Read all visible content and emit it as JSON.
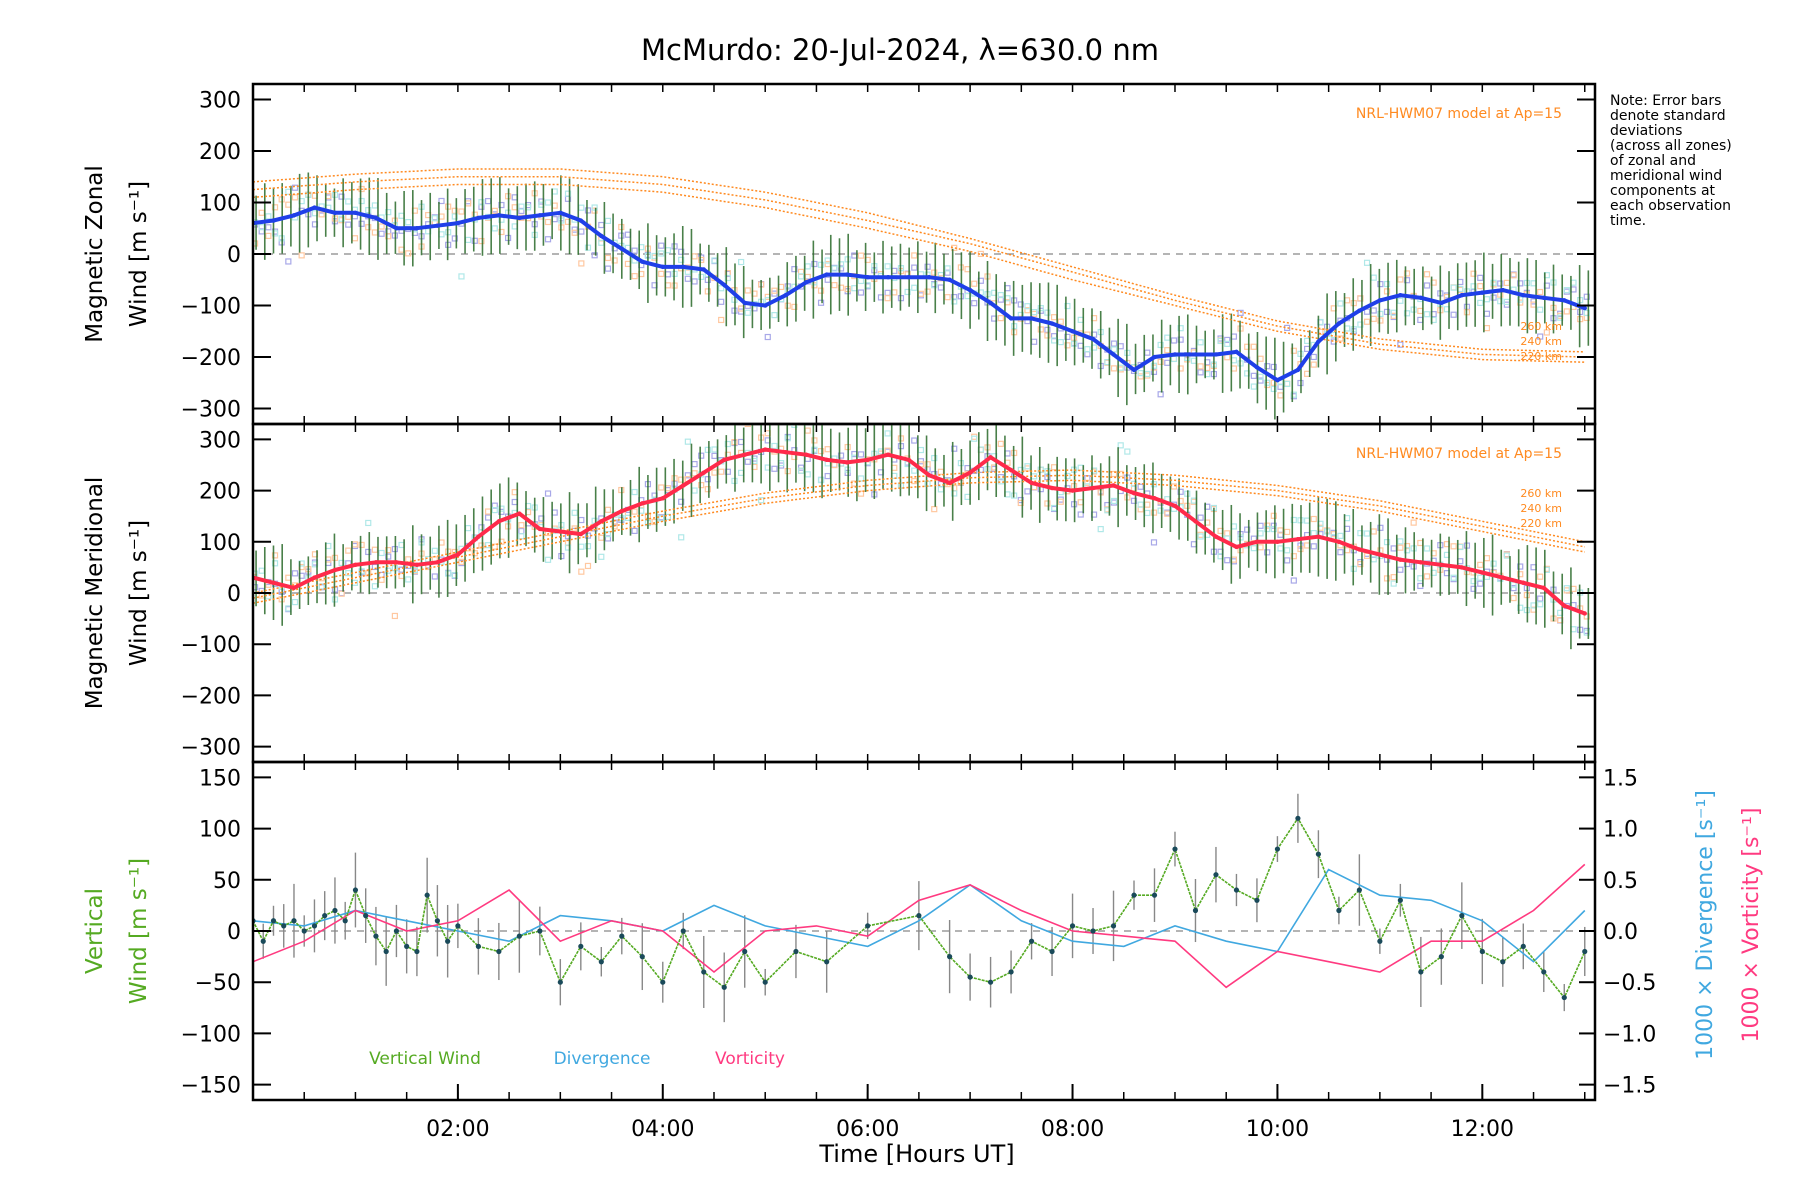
{
  "title": "McMurdo: 20-Jul-2024, λ=630.0 nm",
  "note": "Note: Error bars\ndenote standard\ndeviations\n(across all zones)\nof zonal and\nmeridional wind\ncomponents at\neach observation\ntime.",
  "colors": {
    "zonal": "#1f3fe8",
    "meridional": "#ff2a4a",
    "vertical": "#55aa22",
    "divergence": "#40a8e0",
    "vorticity": "#ff3a80",
    "model": "#ff8a20",
    "scatter": "#a8a8e8",
    "errorbar": "#2a6a2a"
  },
  "chart_data": [
    {
      "type": "line",
      "name": "zonal",
      "ylabel": [
        "Magnetic Zonal",
        "Wind [m s⁻¹]"
      ],
      "ylim": [
        -330,
        330
      ],
      "yticks": [
        -300,
        -200,
        -100,
        0,
        100,
        200,
        300
      ],
      "model_label": "NRL-HWM07 model at Ap=15",
      "model_alts": [
        "260 km",
        "240 km",
        "220 km"
      ],
      "series": [
        {
          "x": [
            0.0,
            0.2,
            0.4,
            0.6,
            0.8,
            1.0,
            1.2,
            1.4,
            1.6,
            1.8,
            2.0,
            2.2,
            2.4,
            2.6,
            2.8,
            3.0,
            3.2,
            3.4,
            3.6,
            3.8,
            4.0,
            4.2,
            4.4,
            4.6,
            4.8,
            5.0,
            5.2,
            5.4,
            5.6,
            5.8,
            6.0,
            6.2,
            6.4,
            6.6,
            6.8,
            7.0,
            7.2,
            7.4,
            7.6,
            7.8,
            8.0,
            8.2,
            8.4,
            8.6,
            8.8,
            9.0,
            9.2,
            9.4,
            9.6,
            9.8,
            10.0,
            10.2,
            10.4,
            10.6,
            10.8,
            11.0,
            11.2,
            11.4,
            11.6,
            11.8,
            12.0,
            12.2,
            12.4,
            12.6,
            12.8,
            13.0
          ],
          "y": [
            60,
            65,
            75,
            90,
            80,
            80,
            70,
            50,
            50,
            55,
            60,
            70,
            75,
            70,
            75,
            80,
            65,
            35,
            10,
            -15,
            -25,
            -25,
            -30,
            -60,
            -95,
            -100,
            -80,
            -55,
            -40,
            -40,
            -45,
            -45,
            -45,
            -45,
            -50,
            -70,
            -95,
            -125,
            -125,
            -135,
            -150,
            -165,
            -195,
            -225,
            -200,
            -195,
            -195,
            -195,
            -190,
            -220,
            -245,
            -225,
            -170,
            -135,
            -110,
            -90,
            -80,
            -85,
            -95,
            -80,
            -75,
            -70,
            -80,
            -85,
            -90,
            -105
          ]
        }
      ],
      "model": {
        "x": [
          0,
          1,
          2,
          3,
          4,
          5,
          6,
          7,
          8,
          9,
          10,
          11,
          12,
          13
        ],
        "y260": [
          140,
          155,
          165,
          165,
          150,
          120,
          80,
          30,
          -25,
          -80,
          -130,
          -165,
          -185,
          -190
        ],
        "y240": [
          125,
          140,
          150,
          150,
          135,
          105,
          65,
          20,
          -35,
          -90,
          -140,
          -175,
          -195,
          -200
        ],
        "y220": [
          110,
          125,
          135,
          135,
          120,
          90,
          50,
          5,
          -50,
          -100,
          -150,
          -185,
          -205,
          -210
        ]
      }
    },
    {
      "type": "line",
      "name": "meridional",
      "ylabel": [
        "Magnetic Meridional",
        "Wind [m s⁻¹]"
      ],
      "ylim": [
        -330,
        330
      ],
      "yticks": [
        -300,
        -200,
        -100,
        0,
        100,
        200,
        300
      ],
      "model_label": "NRL-HWM07 model at Ap=15",
      "model_alts": [
        "260 km",
        "240 km",
        "220 km"
      ],
      "series": [
        {
          "x": [
            0.0,
            0.2,
            0.4,
            0.6,
            0.8,
            1.0,
            1.2,
            1.4,
            1.6,
            1.8,
            2.0,
            2.2,
            2.4,
            2.6,
            2.8,
            3.0,
            3.2,
            3.4,
            3.6,
            3.8,
            4.0,
            4.2,
            4.4,
            4.6,
            4.8,
            5.0,
            5.2,
            5.4,
            5.6,
            5.8,
            6.0,
            6.2,
            6.4,
            6.6,
            6.8,
            7.0,
            7.2,
            7.4,
            7.6,
            7.8,
            8.0,
            8.2,
            8.4,
            8.6,
            8.8,
            9.0,
            9.2,
            9.4,
            9.6,
            9.8,
            10.0,
            10.2,
            10.4,
            10.6,
            10.8,
            11.0,
            11.2,
            11.4,
            11.6,
            11.8,
            12.0,
            12.2,
            12.4,
            12.6,
            12.8,
            13.0
          ],
          "y": [
            30,
            20,
            10,
            30,
            45,
            55,
            60,
            60,
            55,
            60,
            75,
            110,
            140,
            155,
            125,
            120,
            115,
            140,
            160,
            175,
            185,
            210,
            235,
            260,
            270,
            280,
            275,
            270,
            260,
            255,
            260,
            270,
            260,
            230,
            215,
            235,
            265,
            240,
            215,
            205,
            200,
            205,
            210,
            195,
            185,
            170,
            140,
            110,
            90,
            100,
            100,
            105,
            110,
            100,
            85,
            75,
            65,
            60,
            55,
            50,
            40,
            30,
            20,
            10,
            -25,
            -40
          ]
        }
      ],
      "model": {
        "x": [
          0,
          1,
          2,
          3,
          4,
          5,
          6,
          7,
          8,
          9,
          10,
          11,
          12,
          13
        ],
        "y260": [
          0,
          40,
          80,
          120,
          160,
          195,
          220,
          235,
          240,
          230,
          210,
          180,
          140,
          100
        ],
        "y240": [
          -10,
          30,
          70,
          110,
          150,
          185,
          210,
          225,
          230,
          220,
          200,
          170,
          130,
          90
        ],
        "y220": [
          -20,
          20,
          60,
          100,
          140,
          175,
          200,
          215,
          220,
          210,
          190,
          160,
          120,
          80
        ]
      }
    },
    {
      "type": "line",
      "name": "vertical",
      "ylabel": [
        "Vertical",
        "Wind [m s⁻¹]"
      ],
      "ylim": [
        -165,
        165
      ],
      "yticks": [
        -150,
        -100,
        -50,
        0,
        50,
        100,
        150
      ],
      "y2label_divergence": "1000 × Divergence [s⁻¹]",
      "y2label_vorticity": "1000 × Vorticity [s⁻¹]",
      "y2lim": [
        -1.65,
        1.65
      ],
      "y2ticks": [
        -1.5,
        -1.0,
        -0.5,
        0.0,
        0.5,
        1.0,
        1.5
      ],
      "xlabel": "Time [Hours UT]",
      "xlim": [
        0,
        13.1
      ],
      "xticks": [
        2,
        4,
        6,
        8,
        10,
        12
      ],
      "xticklabels": [
        "02:00",
        "04:00",
        "06:00",
        "08:00",
        "10:00",
        "12:00"
      ],
      "legend": [
        "Vertical Wind",
        "Divergence",
        "Vorticity"
      ],
      "series": [
        {
          "name": "Vertical Wind",
          "x": [
            0.0,
            0.1,
            0.2,
            0.3,
            0.4,
            0.5,
            0.6,
            0.7,
            0.8,
            0.9,
            1.0,
            1.1,
            1.2,
            1.3,
            1.4,
            1.5,
            1.6,
            1.7,
            1.8,
            1.9,
            2.0,
            2.2,
            2.4,
            2.6,
            2.8,
            3.0,
            3.2,
            3.4,
            3.6,
            3.8,
            4.0,
            4.2,
            4.4,
            4.6,
            4.8,
            5.0,
            5.3,
            5.6,
            6.0,
            6.5,
            6.8,
            7.0,
            7.2,
            7.4,
            7.6,
            7.8,
            8.0,
            8.2,
            8.4,
            8.6,
            8.8,
            9.0,
            9.2,
            9.4,
            9.6,
            9.8,
            10.0,
            10.2,
            10.4,
            10.6,
            10.8,
            11.0,
            11.2,
            11.4,
            11.6,
            11.8,
            12.0,
            12.2,
            12.4,
            12.6,
            12.8,
            13.0
          ],
          "y": [
            10,
            -10,
            10,
            5,
            10,
            0,
            5,
            15,
            20,
            10,
            40,
            15,
            -5,
            -20,
            0,
            -15,
            -20,
            35,
            10,
            -10,
            5,
            -15,
            -20,
            -5,
            0,
            -50,
            -15,
            -30,
            -5,
            -25,
            -50,
            0,
            -40,
            -55,
            -20,
            -50,
            -20,
            -30,
            5,
            15,
            -25,
            -45,
            -50,
            -40,
            -10,
            -20,
            5,
            0,
            5,
            35,
            35,
            80,
            20,
            55,
            40,
            30,
            80,
            110,
            75,
            20,
            40,
            -10,
            30,
            -40,
            -25,
            15,
            -20,
            -30,
            -15,
            -40,
            -65,
            -20
          ]
        },
        {
          "name": "Divergence",
          "x": [
            0.0,
            0.5,
            1.0,
            1.5,
            2.0,
            2.5,
            3.0,
            3.5,
            4.0,
            4.5,
            5.0,
            5.5,
            6.0,
            6.5,
            7.0,
            7.5,
            8.0,
            8.5,
            9.0,
            9.5,
            10.0,
            10.5,
            11.0,
            11.5,
            12.0,
            12.5,
            13.0
          ],
          "y": [
            0.1,
            0.05,
            0.2,
            0.1,
            0.0,
            -0.1,
            0.15,
            0.1,
            0.0,
            0.25,
            0.05,
            -0.05,
            -0.15,
            0.1,
            0.45,
            0.1,
            -0.1,
            -0.15,
            0.05,
            -0.1,
            -0.2,
            0.6,
            0.35,
            0.3,
            0.1,
            -0.3,
            0.2
          ]
        },
        {
          "name": "Vorticity",
          "x": [
            0.0,
            0.5,
            1.0,
            1.5,
            2.0,
            2.5,
            3.0,
            3.5,
            4.0,
            4.5,
            5.0,
            5.5,
            6.0,
            6.5,
            7.0,
            7.5,
            8.0,
            8.5,
            9.0,
            9.5,
            10.0,
            10.5,
            11.0,
            11.5,
            12.0,
            12.5,
            13.0
          ],
          "y": [
            -0.3,
            -0.1,
            0.2,
            0.0,
            0.1,
            0.4,
            -0.1,
            0.1,
            0.0,
            -0.4,
            0.0,
            0.05,
            -0.05,
            0.3,
            0.45,
            0.2,
            0.0,
            -0.05,
            -0.1,
            -0.55,
            -0.2,
            -0.3,
            -0.4,
            -0.1,
            -0.1,
            0.2,
            0.65
          ]
        }
      ]
    }
  ]
}
